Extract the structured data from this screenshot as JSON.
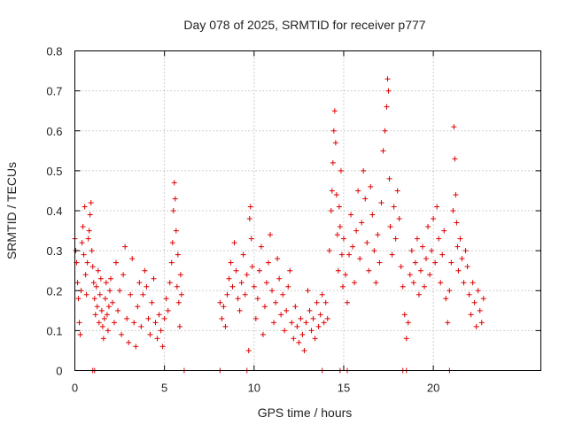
{
  "chart_data": {
    "type": "scatter",
    "title": "Day 078 of 2025, SRMTID for receiver p777",
    "xlabel": "GPS time / hours",
    "ylabel": "SRMTID / TECUs",
    "xlim": [
      0,
      26
    ],
    "ylim": [
      0,
      0.8
    ],
    "xticks": [
      "0",
      "5",
      "10",
      "15",
      "20"
    ],
    "yticks": [
      "0",
      "0.1",
      "0.2",
      "0.3",
      "0.4",
      "0.5",
      "0.6",
      "0.7",
      "0.8"
    ],
    "grid": true,
    "marker": "+",
    "color": "#e00000",
    "series": [
      {
        "name": "SRMTID",
        "points": [
          [
            0.0,
            0.33
          ],
          [
            0.05,
            0.3
          ],
          [
            0.1,
            0.27
          ],
          [
            0.15,
            0.22
          ],
          [
            0.2,
            0.18
          ],
          [
            0.25,
            0.12
          ],
          [
            0.3,
            0.09
          ],
          [
            0.35,
            0.2
          ],
          [
            0.4,
            0.32
          ],
          [
            0.45,
            0.36
          ],
          [
            0.5,
            0.29
          ],
          [
            0.55,
            0.41
          ],
          [
            0.6,
            0.24
          ],
          [
            0.65,
            0.19
          ],
          [
            0.7,
            0.27
          ],
          [
            0.75,
            0.33
          ],
          [
            0.8,
            0.35
          ],
          [
            0.85,
            0.39
          ],
          [
            0.9,
            0.42
          ],
          [
            0.95,
            0.3
          ],
          [
            1.0,
            0.26
          ],
          [
            1.05,
            0.22
          ],
          [
            1.1,
            0.18
          ],
          [
            1.15,
            0.14
          ],
          [
            1.2,
            0.21
          ],
          [
            1.25,
            0.16
          ],
          [
            1.3,
            0.25
          ],
          [
            1.35,
            0.12
          ],
          [
            1.4,
            0.19
          ],
          [
            1.45,
            0.23
          ],
          [
            1.5,
            0.15
          ],
          [
            1.55,
            0.11
          ],
          [
            1.6,
            0.08
          ],
          [
            1.65,
            0.13
          ],
          [
            1.7,
            0.18
          ],
          [
            1.75,
            0.22
          ],
          [
            1.8,
            0.14
          ],
          [
            1.85,
            0.1
          ],
          [
            1.9,
            0.16
          ],
          [
            1.95,
            0.2
          ],
          [
            2.0,
            0.23
          ],
          [
            2.1,
            0.17
          ],
          [
            2.2,
            0.12
          ],
          [
            2.3,
            0.27
          ],
          [
            2.4,
            0.15
          ],
          [
            2.5,
            0.2
          ],
          [
            2.6,
            0.09
          ],
          [
            2.7,
            0.24
          ],
          [
            2.8,
            0.31
          ],
          [
            2.9,
            0.13
          ],
          [
            3.0,
            0.07
          ],
          [
            3.1,
            0.19
          ],
          [
            3.2,
            0.28
          ],
          [
            3.3,
            0.12
          ],
          [
            3.4,
            0.06
          ],
          [
            3.5,
            0.16
          ],
          [
            3.6,
            0.22
          ],
          [
            3.7,
            0.11
          ],
          [
            3.8,
            0.19
          ],
          [
            3.9,
            0.25
          ],
          [
            4.0,
            0.21
          ],
          [
            4.1,
            0.13
          ],
          [
            4.2,
            0.09
          ],
          [
            4.3,
            0.17
          ],
          [
            4.4,
            0.23
          ],
          [
            4.5,
            0.12
          ],
          [
            4.6,
            0.08
          ],
          [
            4.7,
            0.14
          ],
          [
            4.8,
            0.1
          ],
          [
            4.9,
            0.06
          ],
          [
            5.0,
            0.13
          ],
          [
            5.1,
            0.18
          ],
          [
            5.2,
            0.15
          ],
          [
            5.3,
            0.22
          ],
          [
            5.4,
            0.27
          ],
          [
            5.45,
            0.32
          ],
          [
            5.5,
            0.4
          ],
          [
            5.55,
            0.47
          ],
          [
            5.6,
            0.43
          ],
          [
            5.65,
            0.35
          ],
          [
            5.7,
            0.21
          ],
          [
            5.75,
            0.29
          ],
          [
            5.8,
            0.17
          ],
          [
            5.85,
            0.11
          ],
          [
            5.9,
            0.24
          ],
          [
            5.95,
            0.19
          ],
          [
            1.0,
            0.0
          ],
          [
            1.1,
            0.0
          ],
          [
            6.1,
            0.0
          ],
          [
            8.1,
            0.17
          ],
          [
            8.2,
            0.13
          ],
          [
            8.3,
            0.16
          ],
          [
            8.4,
            0.11
          ],
          [
            8.5,
            0.19
          ],
          [
            8.6,
            0.23
          ],
          [
            8.7,
            0.27
          ],
          [
            8.8,
            0.21
          ],
          [
            8.9,
            0.32
          ],
          [
            9.0,
            0.25
          ],
          [
            9.1,
            0.18
          ],
          [
            9.2,
            0.15
          ],
          [
            9.3,
            0.22
          ],
          [
            9.4,
            0.29
          ],
          [
            9.5,
            0.19
          ],
          [
            9.6,
            0.24
          ],
          [
            9.7,
            0.05
          ],
          [
            9.75,
            0.38
          ],
          [
            9.8,
            0.41
          ],
          [
            9.85,
            0.33
          ],
          [
            9.9,
            0.26
          ],
          [
            10.0,
            0.21
          ],
          [
            10.1,
            0.13
          ],
          [
            10.2,
            0.18
          ],
          [
            10.3,
            0.25
          ],
          [
            10.4,
            0.31
          ],
          [
            10.5,
            0.09
          ],
          [
            10.6,
            0.16
          ],
          [
            10.7,
            0.22
          ],
          [
            10.8,
            0.27
          ],
          [
            10.9,
            0.34
          ],
          [
            11.0,
            0.2
          ],
          [
            11.1,
            0.12
          ],
          [
            11.2,
            0.17
          ],
          [
            11.3,
            0.28
          ],
          [
            11.4,
            0.23
          ],
          [
            11.5,
            0.14
          ],
          [
            11.6,
            0.19
          ],
          [
            11.7,
            0.1
          ],
          [
            11.8,
            0.15
          ],
          [
            11.9,
            0.21
          ],
          [
            12.0,
            0.25
          ],
          [
            12.1,
            0.12
          ],
          [
            12.2,
            0.08
          ],
          [
            12.3,
            0.16
          ],
          [
            12.4,
            0.11
          ],
          [
            12.5,
            0.07
          ],
          [
            12.6,
            0.13
          ],
          [
            12.7,
            0.09
          ],
          [
            12.8,
            0.05
          ],
          [
            12.9,
            0.12
          ],
          [
            13.0,
            0.2
          ],
          [
            13.1,
            0.15
          ],
          [
            13.2,
            0.1
          ],
          [
            13.3,
            0.13
          ],
          [
            13.4,
            0.08
          ],
          [
            13.5,
            0.17
          ],
          [
            13.6,
            0.11
          ],
          [
            13.7,
            0.14
          ],
          [
            13.8,
            0.19
          ],
          [
            13.9,
            0.12
          ],
          [
            14.0,
            0.17
          ],
          [
            14.1,
            0.13
          ],
          [
            14.2,
            0.3
          ],
          [
            14.3,
            0.4
          ],
          [
            14.35,
            0.45
          ],
          [
            14.4,
            0.52
          ],
          [
            14.45,
            0.6
          ],
          [
            14.5,
            0.65
          ],
          [
            14.55,
            0.57
          ],
          [
            14.6,
            0.44
          ],
          [
            14.65,
            0.34
          ],
          [
            14.7,
            0.25
          ],
          [
            14.75,
            0.41
          ],
          [
            14.8,
            0.36
          ],
          [
            14.85,
            0.5
          ],
          [
            14.9,
            0.29
          ],
          [
            14.95,
            0.21
          ],
          [
            8.1,
            0.0
          ],
          [
            9.6,
            0.0
          ],
          [
            13.8,
            0.0
          ],
          [
            14.8,
            0.0
          ],
          [
            15.0,
            0.33
          ],
          [
            15.1,
            0.24
          ],
          [
            15.2,
            0.17
          ],
          [
            15.3,
            0.29
          ],
          [
            15.4,
            0.39
          ],
          [
            15.5,
            0.31
          ],
          [
            15.6,
            0.22
          ],
          [
            15.7,
            0.35
          ],
          [
            15.8,
            0.45
          ],
          [
            15.9,
            0.28
          ],
          [
            16.0,
            0.37
          ],
          [
            16.1,
            0.5
          ],
          [
            16.2,
            0.43
          ],
          [
            16.3,
            0.32
          ],
          [
            16.4,
            0.25
          ],
          [
            16.5,
            0.46
          ],
          [
            16.6,
            0.39
          ],
          [
            16.7,
            0.3
          ],
          [
            16.8,
            0.22
          ],
          [
            16.9,
            0.34
          ],
          [
            17.0,
            0.27
          ],
          [
            17.1,
            0.42
          ],
          [
            17.2,
            0.55
          ],
          [
            17.3,
            0.6
          ],
          [
            17.4,
            0.66
          ],
          [
            17.45,
            0.73
          ],
          [
            17.5,
            0.7
          ],
          [
            17.55,
            0.48
          ],
          [
            17.6,
            0.36
          ],
          [
            17.7,
            0.29
          ],
          [
            17.8,
            0.41
          ],
          [
            17.9,
            0.33
          ],
          [
            18.0,
            0.45
          ],
          [
            18.1,
            0.38
          ],
          [
            18.2,
            0.26
          ],
          [
            18.3,
            0.21
          ],
          [
            18.4,
            0.14
          ],
          [
            18.5,
            0.08
          ],
          [
            18.6,
            0.12
          ],
          [
            18.7,
            0.24
          ],
          [
            18.8,
            0.3
          ],
          [
            18.9,
            0.22
          ],
          [
            19.0,
            0.27
          ],
          [
            19.1,
            0.33
          ],
          [
            19.2,
            0.19
          ],
          [
            19.3,
            0.25
          ],
          [
            19.4,
            0.31
          ],
          [
            19.5,
            0.21
          ],
          [
            19.6,
            0.28
          ],
          [
            19.7,
            0.36
          ],
          [
            19.8,
            0.24
          ],
          [
            19.9,
            0.3
          ],
          [
            20.0,
            0.38
          ],
          [
            20.1,
            0.27
          ],
          [
            20.2,
            0.41
          ],
          [
            20.3,
            0.33
          ],
          [
            20.4,
            0.22
          ],
          [
            20.5,
            0.29
          ],
          [
            20.6,
            0.35
          ],
          [
            20.7,
            0.18
          ],
          [
            20.8,
            0.12
          ],
          [
            20.9,
            0.2
          ],
          [
            21.0,
            0.27
          ],
          [
            21.1,
            0.4
          ],
          [
            21.15,
            0.61
          ],
          [
            21.2,
            0.53
          ],
          [
            21.25,
            0.44
          ],
          [
            21.3,
            0.37
          ],
          [
            21.35,
            0.31
          ],
          [
            21.4,
            0.25
          ],
          [
            21.5,
            0.33
          ],
          [
            21.6,
            0.28
          ],
          [
            21.7,
            0.22
          ],
          [
            21.8,
            0.3
          ],
          [
            21.9,
            0.26
          ],
          [
            22.0,
            0.19
          ],
          [
            22.1,
            0.14
          ],
          [
            22.2,
            0.22
          ],
          [
            22.3,
            0.17
          ],
          [
            22.4,
            0.11
          ],
          [
            22.5,
            0.2
          ],
          [
            22.6,
            0.15
          ],
          [
            22.7,
            0.12
          ],
          [
            22.8,
            0.18
          ],
          [
            15.2,
            0.0
          ],
          [
            18.3,
            0.0
          ],
          [
            18.5,
            0.0
          ],
          [
            20.9,
            0.0
          ]
        ]
      }
    ]
  }
}
